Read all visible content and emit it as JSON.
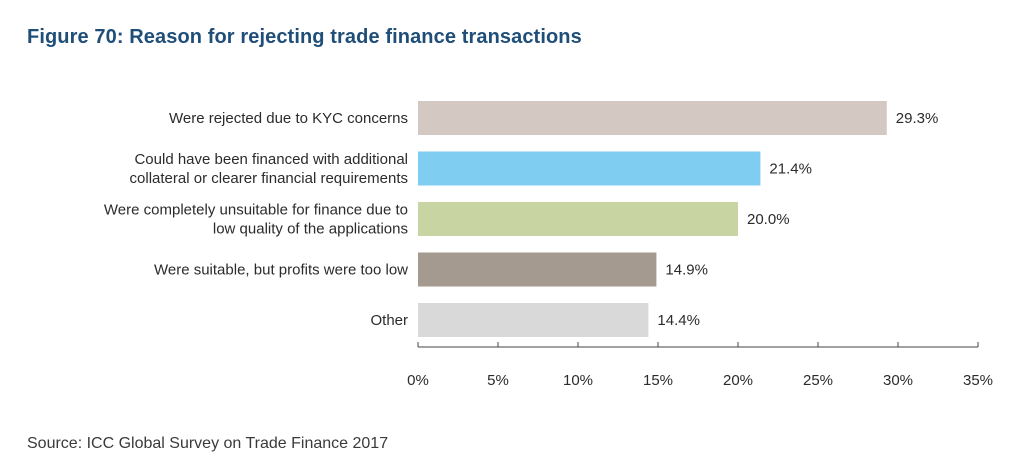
{
  "title": "Figure 70: Reason for rejecting trade finance transactions",
  "source": "Source: ICC Global Survey on Trade Finance 2017",
  "chart_data": {
    "type": "bar",
    "orientation": "horizontal",
    "categories": [
      [
        "Were rejected due to KYC concerns"
      ],
      [
        "Could have been financed with additional",
        "collateral or clearer financial requirements"
      ],
      [
        "Were completely unsuitable for finance due to",
        "low quality of the applications"
      ],
      [
        "Were suitable, but profits were too low"
      ],
      [
        "Other"
      ]
    ],
    "values": [
      29.3,
      21.4,
      20.0,
      14.9,
      14.4
    ],
    "value_labels": [
      "29.3%",
      "21.4%",
      "20.0%",
      "14.9%",
      "14.4%"
    ],
    "colors": [
      "#d3c9c2",
      "#7fcdf0",
      "#c8d5a3",
      "#a49a8f",
      "#d9d9d9"
    ],
    "xlim": [
      0,
      35
    ],
    "xticks": [
      0,
      5,
      10,
      15,
      20,
      25,
      30,
      35
    ],
    "xtick_labels": [
      "0%",
      "5%",
      "10%",
      "15%",
      "20%",
      "25%",
      "30%",
      "35%"
    ],
    "xlabel": "",
    "ylabel": "",
    "grid": false,
    "legend": "none"
  }
}
